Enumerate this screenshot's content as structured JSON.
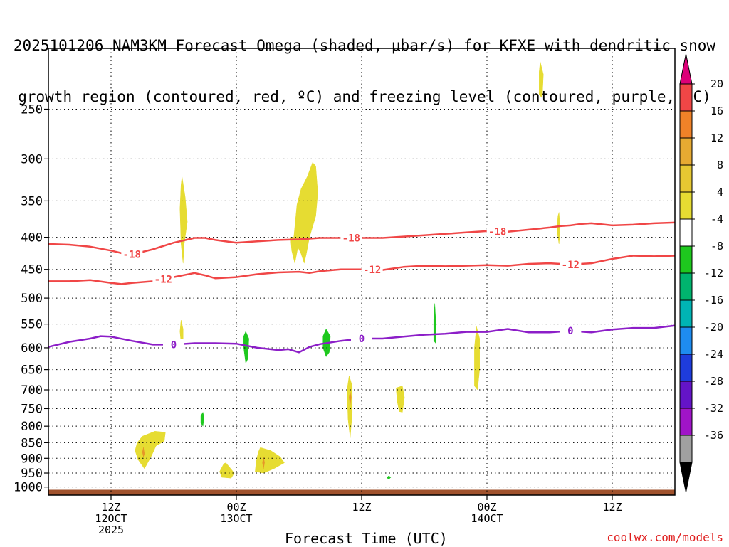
{
  "title_lines": [
    "2025101206 NAM3KM Forecast Omega (shaded, μbar/s) for KFXE with dendritic snow",
    "growth region (contoured, red, ºC) and freezing level (contoured, purple, ºC)"
  ],
  "credit": "coolwx.com/models",
  "chart_data": {
    "type": "contour",
    "title": "2025101206 NAM3KM Forecast Omega (shaded, μbar/s) for KFXE with dendritic snow growth region (contoured, red, ºC) and freezing level (contoured, purple, ºC)",
    "xlabel": "Forecast Time (UTC)",
    "ylabel": "",
    "x_unit": "forecast hour (from 2025101206)",
    "xlim": [
      0,
      60
    ],
    "ylim_hPa": [
      1030,
      200
    ],
    "y_scale": "log",
    "grid": true,
    "x_ticks": [
      {
        "x": 6,
        "labels": [
          "12Z",
          "12OCT",
          "2025"
        ]
      },
      {
        "x": 18,
        "labels": [
          "00Z",
          "13OCT"
        ]
      },
      {
        "x": 30,
        "labels": [
          "12Z"
        ]
      },
      {
        "x": 42,
        "labels": [
          "00Z",
          "14OCT"
        ]
      },
      {
        "x": 54,
        "labels": [
          "12Z"
        ]
      }
    ],
    "y_ticks": [
      250,
      300,
      350,
      400,
      450,
      500,
      550,
      600,
      650,
      700,
      750,
      800,
      850,
      900,
      950,
      1000
    ],
    "contours": [
      {
        "name": "-18",
        "color": "#f04646",
        "width": 2.5,
        "label_at": [
          8,
          29,
          43
        ],
        "points": [
          [
            0,
            410
          ],
          [
            2,
            411
          ],
          [
            4,
            414
          ],
          [
            6,
            420
          ],
          [
            7,
            424
          ],
          [
            8,
            426
          ],
          [
            10,
            418
          ],
          [
            12,
            408
          ],
          [
            14,
            401
          ],
          [
            15,
            401
          ],
          [
            16,
            404
          ],
          [
            18,
            408
          ],
          [
            20,
            406
          ],
          [
            22,
            404
          ],
          [
            24,
            403
          ],
          [
            26,
            401
          ],
          [
            28,
            401
          ],
          [
            30,
            401
          ],
          [
            32,
            401
          ],
          [
            34,
            399
          ],
          [
            36,
            397
          ],
          [
            38,
            395
          ],
          [
            40,
            393
          ],
          [
            42,
            391
          ],
          [
            44,
            392
          ],
          [
            46,
            389
          ],
          [
            48,
            386
          ],
          [
            49,
            384
          ],
          [
            50,
            383
          ],
          [
            51,
            381
          ],
          [
            52,
            380
          ],
          [
            54,
            383
          ],
          [
            56,
            382
          ],
          [
            58,
            380
          ],
          [
            60,
            379
          ]
        ]
      },
      {
        "name": "-12",
        "color": "#f04646",
        "width": 2.5,
        "label_at": [
          11,
          31,
          50
        ],
        "points": [
          [
            0,
            470
          ],
          [
            2,
            470
          ],
          [
            4,
            468
          ],
          [
            6,
            473
          ],
          [
            7,
            475
          ],
          [
            8,
            473
          ],
          [
            10,
            470
          ],
          [
            12,
            463
          ],
          [
            14,
            456
          ],
          [
            15,
            460
          ],
          [
            16,
            465
          ],
          [
            18,
            463
          ],
          [
            20,
            458
          ],
          [
            22,
            455
          ],
          [
            24,
            454
          ],
          [
            25,
            456
          ],
          [
            26,
            453
          ],
          [
            28,
            450
          ],
          [
            30,
            450
          ],
          [
            32,
            451
          ],
          [
            34,
            446
          ],
          [
            36,
            444
          ],
          [
            38,
            445
          ],
          [
            40,
            444
          ],
          [
            42,
            443
          ],
          [
            44,
            444
          ],
          [
            46,
            441
          ],
          [
            48,
            440
          ],
          [
            50,
            442
          ],
          [
            52,
            440
          ],
          [
            54,
            433
          ],
          [
            56,
            428
          ],
          [
            58,
            429
          ],
          [
            60,
            428
          ]
        ]
      },
      {
        "name": "0",
        "color": "#8c1ec8",
        "width": 2.5,
        "label_at": [
          12,
          30,
          50
        ],
        "points": [
          [
            0,
            598
          ],
          [
            2,
            587
          ],
          [
            4,
            580
          ],
          [
            5,
            575
          ],
          [
            6,
            576
          ],
          [
            8,
            585
          ],
          [
            10,
            593
          ],
          [
            12,
            593
          ],
          [
            14,
            590
          ],
          [
            16,
            590
          ],
          [
            18,
            591
          ],
          [
            20,
            600
          ],
          [
            22,
            605
          ],
          [
            23,
            603
          ],
          [
            24,
            610
          ],
          [
            25,
            598
          ],
          [
            26,
            592
          ],
          [
            28,
            585
          ],
          [
            30,
            580
          ],
          [
            32,
            580
          ],
          [
            34,
            576
          ],
          [
            36,
            572
          ],
          [
            38,
            570
          ],
          [
            40,
            566
          ],
          [
            42,
            566
          ],
          [
            44,
            560
          ],
          [
            46,
            567
          ],
          [
            48,
            567
          ],
          [
            50,
            564
          ],
          [
            52,
            567
          ],
          [
            54,
            561
          ],
          [
            56,
            558
          ],
          [
            58,
            558
          ],
          [
            60,
            553
          ]
        ]
      }
    ],
    "omega_areas": [
      {
        "color": "#e6dc32",
        "points": [
          [
            12.8,
            320
          ],
          [
            13.1,
            345
          ],
          [
            13.3,
            378
          ],
          [
            13.0,
            410
          ],
          [
            12.9,
            440
          ],
          [
            12.7,
            410
          ],
          [
            12.6,
            360
          ],
          [
            12.7,
            330
          ]
        ]
      },
      {
        "color": "#e6dc32",
        "points": [
          [
            23.5,
            400
          ],
          [
            23.8,
            355
          ],
          [
            24.2,
            335
          ],
          [
            24.8,
            320
          ],
          [
            25.3,
            304
          ],
          [
            25.6,
            308
          ],
          [
            25.8,
            340
          ],
          [
            25.6,
            370
          ],
          [
            25.0,
            400
          ],
          [
            24.7,
            425
          ],
          [
            24.5,
            440
          ],
          [
            24.2,
            425
          ],
          [
            23.9,
            415
          ],
          [
            23.6,
            440
          ],
          [
            23.3,
            420
          ],
          [
            23.2,
            400
          ]
        ]
      },
      {
        "color": "#e6dc32",
        "points": [
          [
            12.7,
            542
          ],
          [
            12.9,
            560
          ],
          [
            12.9,
            585
          ],
          [
            12.7,
            590
          ],
          [
            12.6,
            565
          ]
        ]
      },
      {
        "color": "#e6dc32",
        "points": [
          [
            48.9,
            365
          ],
          [
            49.0,
            390
          ],
          [
            48.9,
            410
          ],
          [
            48.7,
            390
          ],
          [
            48.8,
            370
          ]
        ]
      },
      {
        "color": "#e6dc32",
        "points": [
          [
            47.1,
            210
          ],
          [
            47.4,
            220
          ],
          [
            47.3,
            240
          ],
          [
            47.0,
            237
          ],
          [
            47.0,
            218
          ]
        ]
      },
      {
        "color": "#e6dc32",
        "points": [
          [
            41.0,
            555
          ],
          [
            41.3,
            580
          ],
          [
            41.3,
            650
          ],
          [
            41.1,
            700
          ],
          [
            40.8,
            690
          ],
          [
            40.8,
            600
          ]
        ]
      },
      {
        "color": "#e6dc32",
        "points": [
          [
            28.8,
            665
          ],
          [
            29.1,
            690
          ],
          [
            29.1,
            760
          ],
          [
            28.9,
            835
          ],
          [
            28.7,
            780
          ],
          [
            28.6,
            700
          ]
        ]
      },
      {
        "color": "#e6dc32",
        "points": [
          [
            33.3,
            695
          ],
          [
            33.9,
            690
          ],
          [
            34.1,
            720
          ],
          [
            33.9,
            760
          ],
          [
            33.6,
            758
          ],
          [
            33.4,
            730
          ]
        ]
      },
      {
        "color": "#e6dc32",
        "points": [
          [
            9.0,
            830
          ],
          [
            10.2,
            815
          ],
          [
            11.2,
            818
          ],
          [
            11.1,
            845
          ],
          [
            10.3,
            860
          ],
          [
            9.9,
            890
          ],
          [
            9.2,
            935
          ],
          [
            8.6,
            905
          ],
          [
            8.3,
            875
          ],
          [
            8.5,
            850
          ]
        ]
      },
      {
        "color": "#e6dc32",
        "points": [
          [
            17.0,
            915
          ],
          [
            17.8,
            950
          ],
          [
            17.5,
            968
          ],
          [
            16.6,
            965
          ],
          [
            16.4,
            945
          ],
          [
            16.8,
            918
          ]
        ]
      },
      {
        "color": "#e6dc32",
        "points": [
          [
            20.3,
            865
          ],
          [
            21.3,
            875
          ],
          [
            22.2,
            895
          ],
          [
            22.6,
            915
          ],
          [
            21.6,
            935
          ],
          [
            20.6,
            950
          ],
          [
            19.8,
            945
          ],
          [
            19.9,
            910
          ],
          [
            20.1,
            880
          ]
        ]
      },
      {
        "color": "#1ec81e",
        "points": [
          [
            18.9,
            565
          ],
          [
            19.2,
            580
          ],
          [
            19.1,
            625
          ],
          [
            18.9,
            635
          ],
          [
            18.7,
            600
          ],
          [
            18.7,
            575
          ]
        ]
      },
      {
        "color": "#1ec81e",
        "points": [
          [
            26.6,
            560
          ],
          [
            27.0,
            575
          ],
          [
            26.9,
            610
          ],
          [
            26.6,
            620
          ],
          [
            26.3,
            600
          ],
          [
            26.3,
            575
          ]
        ]
      },
      {
        "color": "#1ec81e",
        "points": [
          [
            37.0,
            510
          ],
          [
            37.1,
            545
          ],
          [
            37.1,
            590
          ],
          [
            36.9,
            585
          ],
          [
            36.9,
            540
          ]
        ]
      },
      {
        "color": "#1ec81e",
        "points": [
          [
            14.8,
            760
          ],
          [
            14.9,
            775
          ],
          [
            14.8,
            800
          ],
          [
            14.6,
            790
          ],
          [
            14.6,
            770
          ]
        ]
      },
      {
        "color": "#1ec81e",
        "points": [
          [
            32.6,
            960
          ],
          [
            32.8,
            965
          ],
          [
            32.6,
            972
          ],
          [
            32.4,
            966
          ]
        ]
      },
      {
        "color": "#e69628",
        "points": [
          [
            9.1,
            865
          ],
          [
            9.2,
            885
          ],
          [
            9.1,
            895
          ],
          [
            9.0,
            880
          ]
        ]
      },
      {
        "color": "#e69628",
        "points": [
          [
            20.6,
            895
          ],
          [
            20.7,
            915
          ],
          [
            20.6,
            935
          ],
          [
            20.5,
            915
          ]
        ]
      },
      {
        "color": "#e69628",
        "points": [
          [
            28.9,
            705
          ],
          [
            29.0,
            720
          ],
          [
            28.9,
            740
          ],
          [
            28.8,
            720
          ]
        ]
      }
    ],
    "ground": {
      "color": "#a0522d",
      "top_hPa": 1010
    },
    "colorbar": {
      "labels": [
        "20",
        "16",
        "12",
        "8",
        "4",
        "-4",
        "-8",
        "-12",
        "-16",
        "-20",
        "-24",
        "-28",
        "-32",
        "-36"
      ],
      "colors": [
        "#f04646",
        "#f08228",
        "#e6aa32",
        "#e6c832",
        "#e6dc32",
        "#ffffff",
        "#1ec81e",
        "#00b46e",
        "#00b4b4",
        "#1e8cf0",
        "#1e3cdc",
        "#6414c8",
        "#a014c8",
        "#a0a0a0"
      ],
      "top_color": "#dc0078",
      "bottom_color": "#000000"
    }
  }
}
